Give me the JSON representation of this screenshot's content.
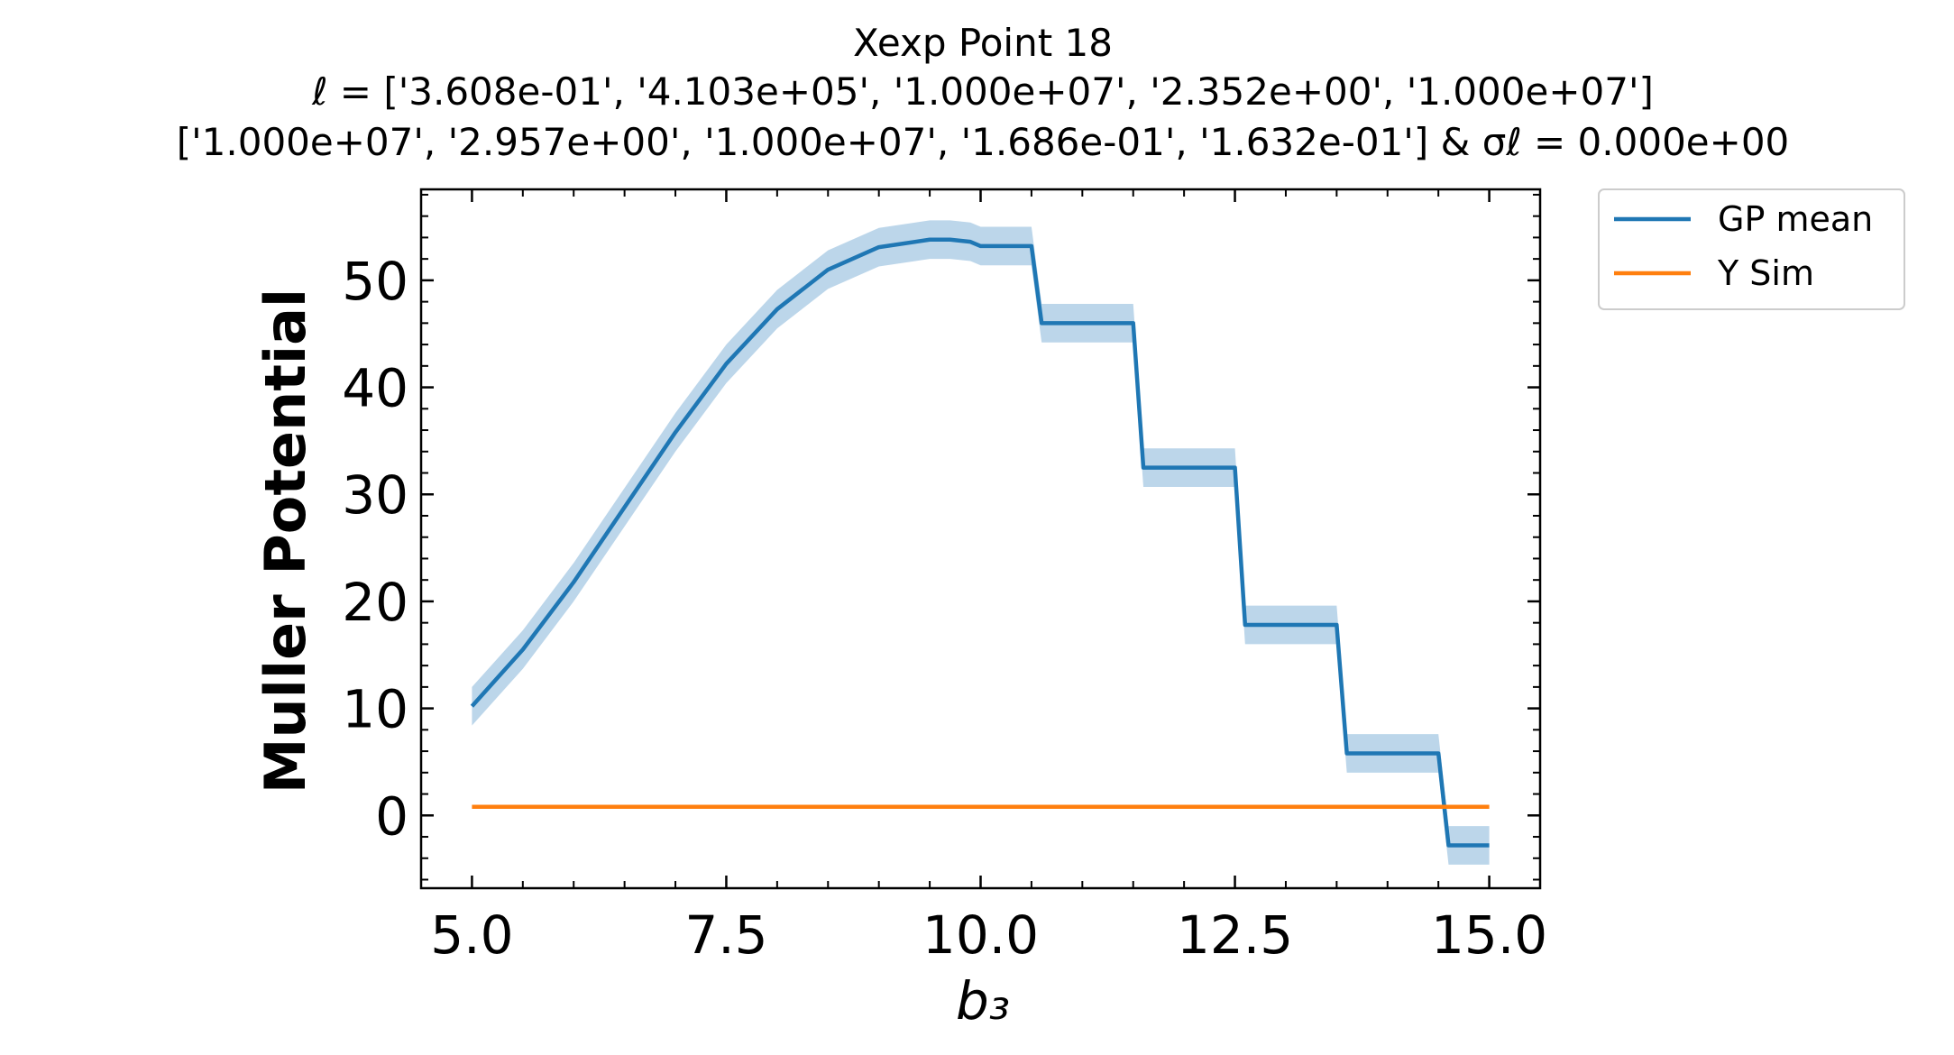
{
  "chart_data": {
    "type": "line",
    "title": {
      "line1": "Xexp Point 18",
      "line2": "ℓ = ['3.608e-01', '4.103e+05', '1.000e+07', '2.352e+00', '1.000e+07']",
      "line3": "['1.000e+07', '2.957e+00', '1.000e+07', '1.686e-01', '1.632e-01'] & σℓ = 0.000e+00"
    },
    "xlabel": "b₃",
    "ylabel": "Muller Potential",
    "xlim": [
      4.5,
      15.5
    ],
    "ylim": [
      -6.8,
      58.5
    ],
    "xticks": [
      5.0,
      7.5,
      10.0,
      12.5,
      15.0
    ],
    "xtick_labels": [
      "5.0",
      "7.5",
      "10.0",
      "12.5",
      "15.0"
    ],
    "yticks": [
      0,
      10,
      20,
      30,
      40,
      50
    ],
    "ytick_labels": [
      "0",
      "10",
      "20",
      "30",
      "40",
      "50"
    ],
    "grid": false,
    "legend_position": "outside-upper-right",
    "series": [
      {
        "name": "GP mean",
        "color": "#1f77b4",
        "band_color": "#a6c8e3",
        "band_halfwidth": 1.8,
        "x": [
          5.0,
          5.5,
          6.0,
          6.5,
          7.0,
          7.5,
          8.0,
          8.5,
          9.0,
          9.5,
          9.7,
          9.9,
          10.0,
          10.5,
          10.5,
          10.6,
          11.5,
          11.6,
          12.5,
          12.6,
          13.5,
          13.6,
          14.5,
          14.6,
          15.0
        ],
        "y": [
          10.2,
          15.5,
          21.8,
          28.8,
          35.8,
          42.2,
          47.3,
          51.0,
          53.1,
          53.8,
          53.8,
          53.6,
          53.2,
          53.2,
          53.2,
          46.0,
          46.0,
          32.5,
          32.5,
          17.8,
          17.8,
          5.8,
          5.8,
          -2.8,
          -2.8
        ]
      },
      {
        "name": "Y Sim",
        "color": "#ff7f0e",
        "x": [
          5.0,
          15.0
        ],
        "y": [
          0.8,
          0.8
        ]
      }
    ]
  }
}
